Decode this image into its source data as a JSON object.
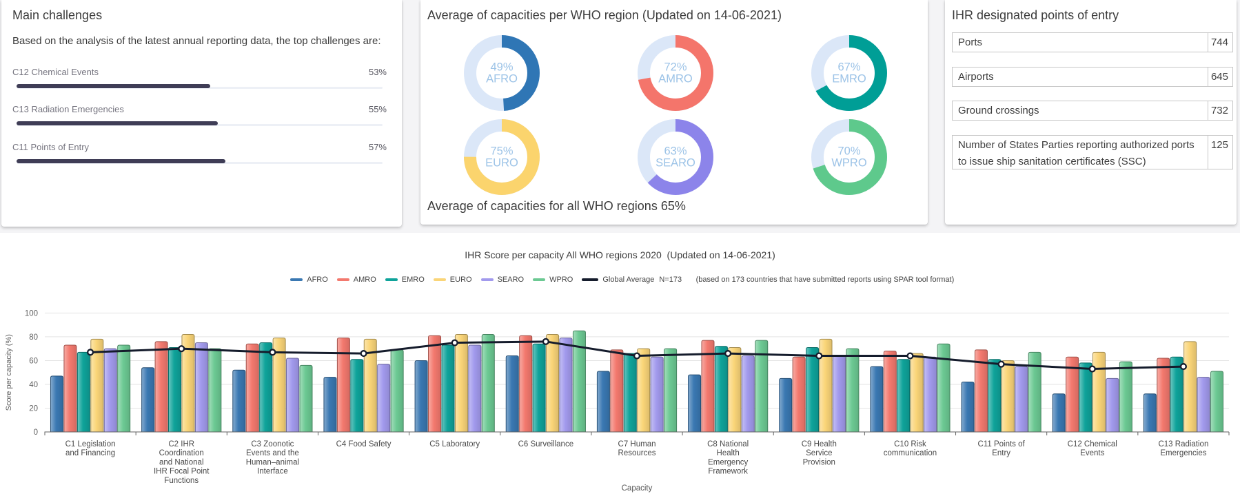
{
  "cards": {
    "challenges": {
      "title": "Main challenges",
      "subtitle": "Based on the analysis of the latest annual reporting data, the top challenges are:",
      "bar_color": "#3f3d56",
      "track_color": "#edf0f6",
      "items": [
        {
          "label": "C12 Chemical Events",
          "value": "53%",
          "pct": 53
        },
        {
          "label": "C13 Radiation Emergencies",
          "value": "55%",
          "pct": 55
        },
        {
          "label": "C11 Points of Entry",
          "value": "57%",
          "pct": 57
        }
      ]
    },
    "capacities": {
      "title": "Average of capacities per WHO region (Updated on 14-06-2021)",
      "footer": "Average of capacities for all WHO regions 65%",
      "ring_rest_color": "#dbe7f8",
      "center_label_color": "#9cc3e7",
      "donuts": [
        {
          "region": "AFRO",
          "pct": 49,
          "value": "49%",
          "color": "#2f76b5"
        },
        {
          "region": "AMRO",
          "pct": 72,
          "value": "72%",
          "color": "#f4756b"
        },
        {
          "region": "EMRO",
          "pct": 67,
          "value": "67%",
          "color": "#009e96"
        },
        {
          "region": "EURO",
          "pct": 75,
          "value": "75%",
          "color": "#fbd46d"
        },
        {
          "region": "SEARO",
          "pct": 63,
          "value": "63%",
          "color": "#8c84ea"
        },
        {
          "region": "WPRO",
          "pct": 70,
          "value": "70%",
          "color": "#5ec98c"
        }
      ]
    },
    "points_of_entry": {
      "title": "IHR designated points of entry",
      "rows": [
        {
          "label": "Ports",
          "value": "744"
        },
        {
          "label": "Airports",
          "value": "645"
        },
        {
          "label": "Ground crossings",
          "value": "732"
        },
        {
          "label": "Number of States Parties reporting authorized ports to issue ship sanitation certificates (SSC)",
          "value": "125"
        }
      ]
    }
  },
  "chart_data": {
    "type": "bar",
    "title": "IHR Score per capacity All WHO regions 2020  (Updated on 14-06-2021)",
    "xlabel": "Capacity",
    "ylabel": "Score per capacity (%)",
    "ylim": [
      0,
      100
    ],
    "yticks": [
      0,
      20,
      40,
      60,
      80,
      100
    ],
    "grid": true,
    "legend_position": "top",
    "categories": [
      "C1 Legislation and Financing",
      "C2 IHR Coordination and National IHR Focal Point Functions",
      "C3 Zoonotic Events and the Human–animal Interface",
      "C4 Food Safety",
      "C5 Laboratory",
      "C6 Surveillance",
      "C7 Human Resources",
      "C8 National Health Emergency Framework",
      "C9 Health Service Provision",
      "C10 Risk communication",
      "C11 Points of Entry",
      "C12 Chemical Events",
      "C13 Radiation Emergencies"
    ],
    "category_lines": [
      [
        "C1 Legislation",
        "and Financing"
      ],
      [
        "C2 IHR",
        "Coordination",
        "and National",
        "IHR Focal Point",
        "Functions"
      ],
      [
        "C3 Zoonotic",
        "Events and the",
        "Human–animal",
        "Interface"
      ],
      [
        "C4 Food Safety"
      ],
      [
        "C5 Laboratory"
      ],
      [
        "C6 Surveillance"
      ],
      [
        "C7 Human",
        "Resources"
      ],
      [
        "C8 National",
        "Health",
        "Emergency",
        "Framework"
      ],
      [
        "C9 Health",
        "Service",
        "Provision"
      ],
      [
        "C10 Risk",
        "communication"
      ],
      [
        "C11 Points of",
        "Entry"
      ],
      [
        "C12 Chemical",
        "Events"
      ],
      [
        "C13 Radiation",
        "Emergencies"
      ]
    ],
    "series": [
      {
        "name": "AFRO",
        "color": "#3a78b2",
        "values": [
          47,
          54,
          52,
          46,
          60,
          64,
          51,
          48,
          45,
          55,
          42,
          32,
          32
        ]
      },
      {
        "name": "AMRO",
        "color": "#f3796e",
        "values": [
          73,
          76,
          74,
          79,
          81,
          81,
          69,
          77,
          63,
          68,
          69,
          63,
          62
        ]
      },
      {
        "name": "EMRO",
        "color": "#0fa39a",
        "values": [
          67,
          71,
          75,
          61,
          73,
          74,
          66,
          72,
          71,
          61,
          61,
          58,
          63
        ]
      },
      {
        "name": "EURO",
        "color": "#fad578",
        "values": [
          78,
          82,
          79,
          78,
          82,
          82,
          70,
          71,
          78,
          66,
          60,
          67,
          76
        ]
      },
      {
        "name": "SEARO",
        "color": "#a29aed",
        "values": [
          70,
          75,
          62,
          57,
          73,
          79,
          63,
          64,
          64,
          63,
          55,
          45,
          46
        ]
      },
      {
        "name": "WPRO",
        "color": "#6cc993",
        "values": [
          73,
          70,
          56,
          69,
          82,
          85,
          70,
          77,
          70,
          74,
          67,
          59,
          51
        ]
      }
    ],
    "line_series": {
      "name": "Global Average",
      "n_label": "N=173",
      "note": "(based on 173 countries that have submitted reports using SPAR tool format)",
      "color": "#151c2c",
      "values": [
        67,
        70,
        67,
        66,
        75,
        76,
        64,
        66,
        64,
        64,
        57,
        53,
        55
      ]
    }
  }
}
